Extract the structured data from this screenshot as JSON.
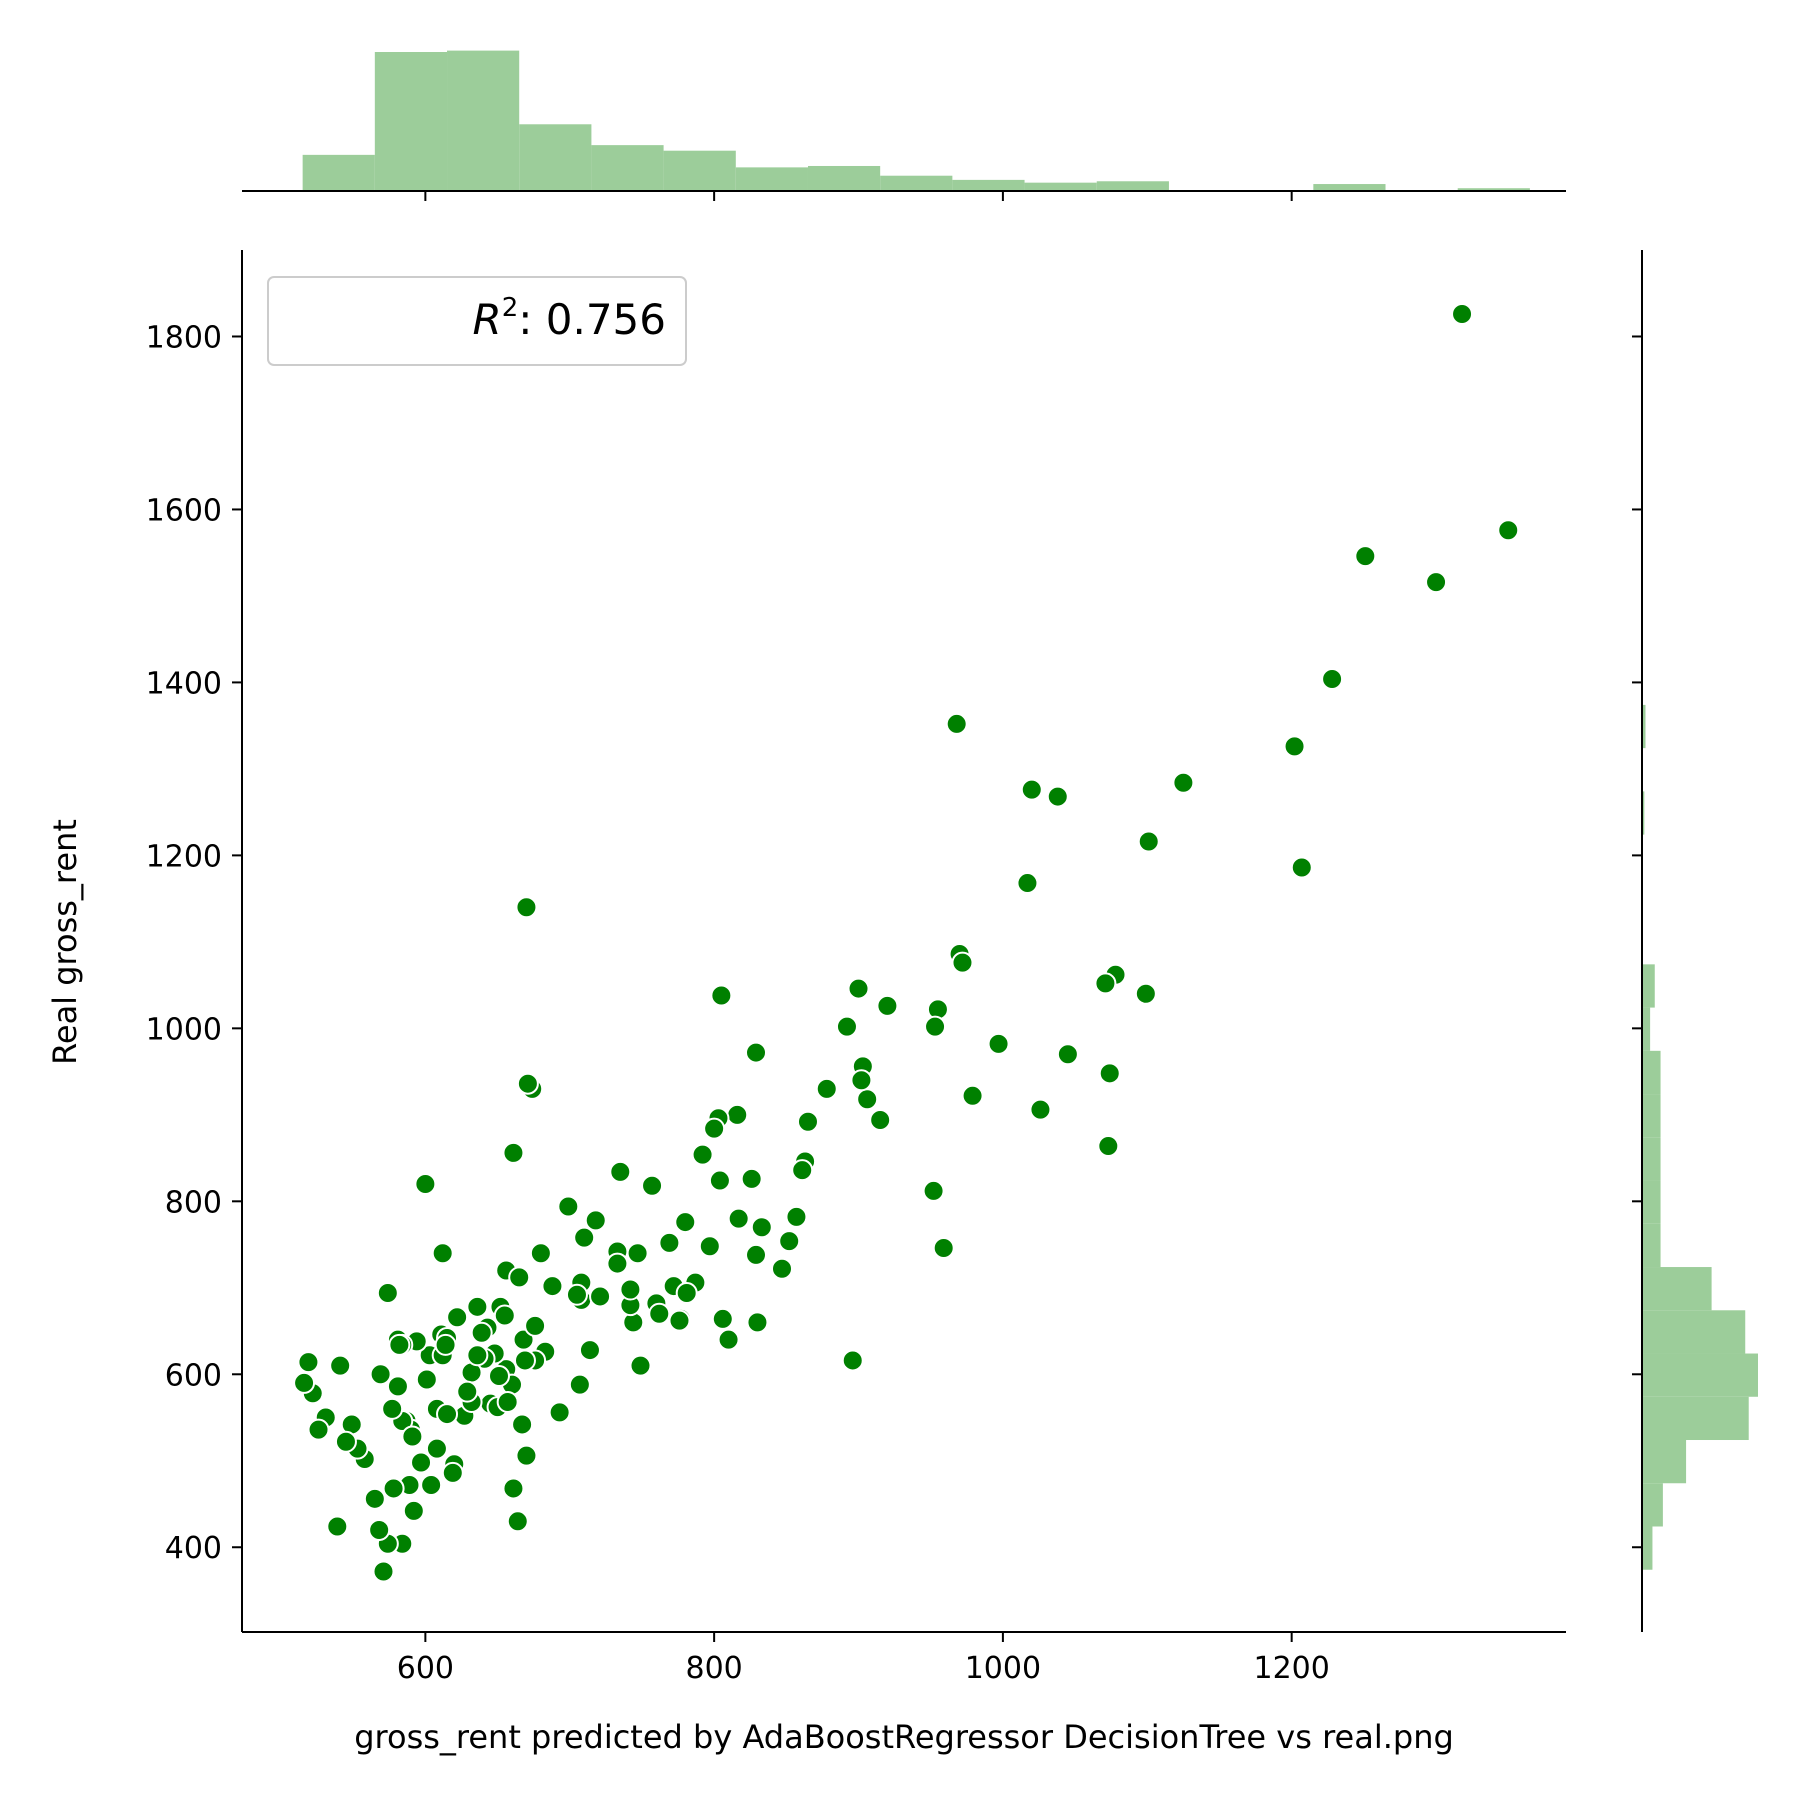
{
  "chart_data": {
    "type": "scatter",
    "title": "",
    "xlabel": "gross_rent predicted by AdaBoostRegressor DecisionTree vs real.png",
    "ylabel": "Real gross_rent",
    "xlim": [
      473,
      1390
    ],
    "ylim": [
      302,
      1900
    ],
    "xticks": [
      600,
      800,
      1000,
      1200
    ],
    "xtick_labels": [
      "600",
      "800",
      "1000",
      "1200"
    ],
    "yticks": [
      400,
      600,
      800,
      1000,
      1200,
      1400,
      1600,
      1800
    ],
    "ytick_labels": [
      "400",
      "600",
      "800",
      "1000",
      "1200",
      "1400",
      "1600",
      "1800"
    ],
    "grid": false,
    "legend": {
      "placement": "top-left",
      "label_main": "R",
      "label_sup": "2",
      "label_rest": ": 0.756"
    },
    "colors": {
      "points": "#008000",
      "histogram": "#9ccd9a",
      "point_edge": "#ffffff"
    },
    "marginal_x_histogram": {
      "bin_edges": [
        515,
        565,
        615,
        665,
        715,
        765,
        815,
        865,
        915,
        965,
        1015,
        1065,
        1115,
        1165,
        1215,
        1265,
        1315,
        1365
      ],
      "relative_heights": [
        0.26,
        1.0,
        1.01,
        0.48,
        0.33,
        0.29,
        0.17,
        0.18,
        0.11,
        0.08,
        0.06,
        0.07,
        0.0,
        0.0,
        0.05,
        0.0,
        0.02
      ]
    },
    "marginal_y_histogram": {
      "bin_edges": [
        374,
        424,
        474,
        524,
        574,
        624,
        674,
        724,
        774,
        824,
        874,
        924,
        974,
        1024,
        1074,
        1124,
        1174,
        1224,
        1274,
        1324,
        1374
      ],
      "relative_widths": [
        0.09,
        0.18,
        0.38,
        0.92,
        1.0,
        0.89,
        0.6,
        0.16,
        0.16,
        0.16,
        0.16,
        0.16,
        0.07,
        0.11,
        0.0,
        0.0,
        0.0,
        0.02,
        0.0,
        0.03
      ]
    },
    "x": [
      1318,
      1350,
      1251,
      1300,
      1228,
      1202,
      1207,
      1125,
      1101,
      1078,
      1071,
      1073,
      1099,
      1074,
      1045,
      1026,
      1038,
      1020,
      1017,
      968,
      970,
      972,
      955,
      953,
      979,
      997,
      959,
      952,
      920,
      915,
      906,
      903,
      902,
      900,
      892,
      878,
      865,
      863,
      861,
      857,
      852,
      847,
      830,
      829,
      826,
      816,
      810,
      806,
      805,
      804,
      803,
      800,
      797,
      792,
      787,
      780,
      777,
      772,
      769,
      760,
      757,
      749,
      747,
      744,
      742,
      735,
      733,
      718,
      714,
      708,
      708,
      707,
      705,
      699,
      683,
      674,
      671,
      670,
      670,
      667,
      664,
      661,
      661,
      656,
      656,
      652,
      648,
      645,
      641,
      636,
      632,
      627,
      620,
      619,
      612,
      608,
      604,
      600,
      597,
      592,
      589,
      587,
      584,
      578,
      574,
      571,
      568,
      565,
      558,
      553,
      549,
      545,
      541,
      539,
      531,
      526,
      522,
      516,
      519,
      613,
      622,
      650,
      632,
      590,
      611,
      688,
      693,
      574,
      660,
      615,
      603,
      584,
      636,
      581,
      651,
      640,
      668,
      676,
      643,
      594,
      629,
      577,
      612,
      608,
      591,
      569,
      615,
      581,
      584,
      896,
      762,
      665,
      680,
      829,
      733,
      721,
      655,
      614,
      639,
      582,
      669,
      657,
      601,
      710,
      676,
      742,
      817,
      833,
      776,
      781
    ],
    "y": [
      1826,
      1576,
      1546,
      1516,
      1404,
      1326,
      1186,
      1284,
      1216,
      1062,
      1052,
      864,
      1040,
      948,
      970,
      906,
      1268,
      1276,
      1168,
      1352,
      1086,
      1076,
      1022,
      1002,
      922,
      982,
      746,
      812,
      1026,
      894,
      918,
      956,
      940,
      1046,
      1002,
      930,
      892,
      846,
      836,
      782,
      754,
      722,
      660,
      972,
      826,
      900,
      640,
      664,
      1038,
      824,
      896,
      884,
      748,
      854,
      706,
      776,
      664,
      702,
      752,
      682,
      818,
      610,
      740,
      660,
      680,
      834,
      742,
      778,
      628,
      706,
      686,
      588,
      692,
      794,
      626,
      930,
      936,
      1140,
      506,
      542,
      430,
      856,
      468,
      606,
      720,
      678,
      624,
      566,
      618,
      678,
      602,
      552,
      496,
      486,
      740,
      514,
      472,
      820,
      498,
      442,
      472,
      546,
      404,
      468,
      404,
      372,
      420,
      456,
      502,
      514,
      542,
      522,
      610,
      424,
      550,
      536,
      578,
      590,
      614,
      636,
      666,
      562,
      568,
      536,
      646,
      702,
      556,
      694,
      588,
      642,
      622,
      546,
      622,
      586,
      598,
      650,
      640,
      616,
      654,
      638,
      580,
      560,
      622,
      560,
      528,
      600,
      554,
      640,
      634,
      616,
      670,
      712,
      740,
      738,
      728,
      690,
      668,
      634,
      648,
      634,
      616,
      568,
      594,
      758,
      656,
      698,
      780,
      770,
      662,
      694
    ]
  }
}
